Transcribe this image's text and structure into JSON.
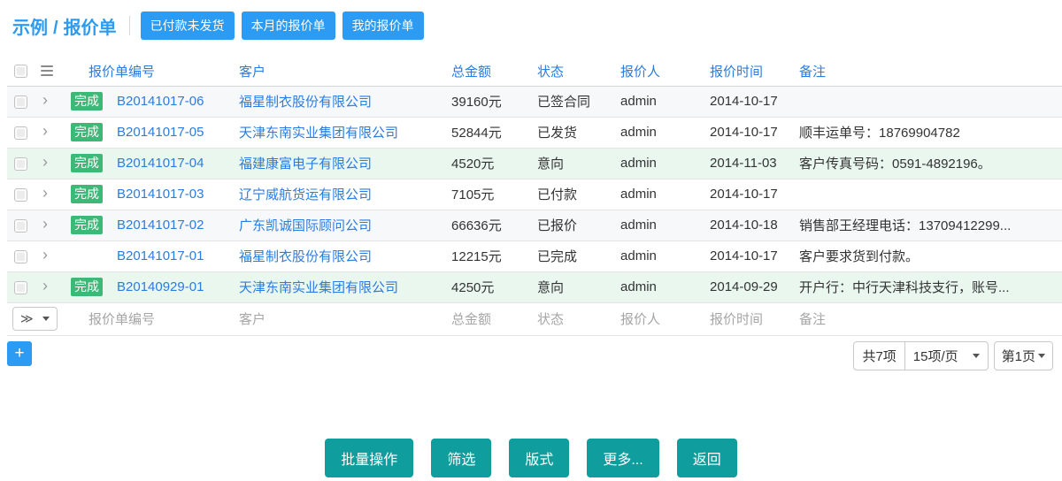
{
  "breadcrumb": {
    "section": "示例",
    "separator": "/",
    "page": "报价单"
  },
  "quick_filters": [
    "已付款未发货",
    "本月的报价单",
    "我的报价单"
  ],
  "table": {
    "columns": [
      "报价单编号",
      "客户",
      "总金额",
      "状态",
      "报价人",
      "报价时间",
      "备注"
    ],
    "rows": [
      {
        "badge": "完成",
        "id": "B20141017-06",
        "customer": "福星制衣股份有限公司",
        "amount": "39160元",
        "status": "已签合同",
        "quoter": "admin",
        "date": "2014-10-17",
        "note": "",
        "highlight": false
      },
      {
        "badge": "完成",
        "id": "B20141017-05",
        "customer": "天津东南实业集团有限公司",
        "amount": "52844元",
        "status": "已发货",
        "quoter": "admin",
        "date": "2014-10-17",
        "note": "顺丰运单号：18769904782",
        "highlight": false
      },
      {
        "badge": "完成",
        "id": "B20141017-04",
        "customer": "福建康富电子有限公司",
        "amount": "4520元",
        "status": "意向",
        "quoter": "admin",
        "date": "2014-11-03",
        "note": "客户传真号码：0591-4892196。",
        "highlight": true
      },
      {
        "badge": "完成",
        "id": "B20141017-03",
        "customer": "辽宁威航货运有限公司",
        "amount": "7105元",
        "status": "已付款",
        "quoter": "admin",
        "date": "2014-10-17",
        "note": "",
        "highlight": false
      },
      {
        "badge": "完成",
        "id": "B20141017-02",
        "customer": "广东凯诚国际顾问公司",
        "amount": "66636元",
        "status": "已报价",
        "quoter": "admin",
        "date": "2014-10-18",
        "note": "销售部王经理电话：13709412299...",
        "highlight": false
      },
      {
        "badge": "",
        "id": "B20141017-01",
        "customer": "福星制衣股份有限公司",
        "amount": "12215元",
        "status": "已完成",
        "quoter": "admin",
        "date": "2014-10-17",
        "note": "客户要求货到付款。",
        "highlight": false
      },
      {
        "badge": "完成",
        "id": "B20140929-01",
        "customer": "天津东南实业集团有限公司",
        "amount": "4250元",
        "status": "意向",
        "quoter": "admin",
        "date": "2014-09-29",
        "note": "开户行：中行天津科技支行，账号...",
        "highlight": true
      }
    ]
  },
  "filter_row": {
    "selector_symbol": "≫",
    "placeholders": [
      "报价单编号",
      "客户",
      "总金额",
      "状态",
      "报价人",
      "报价时间",
      "备注"
    ]
  },
  "controls": {
    "add_label": "+"
  },
  "pagination": {
    "total": "共7项",
    "page_size": "15项/页",
    "page": "第1页"
  },
  "footer_buttons": [
    "批量操作",
    "筛选",
    "版式",
    "更多...",
    "返回"
  ],
  "colors": {
    "accent_blue": "#2b9bf4",
    "link_blue": "#2a7ce0",
    "badge_green": "#3cb877",
    "row_green": "#e9f7ef",
    "row_stripe": "#f7f8fa",
    "teal": "#0f9d9d"
  }
}
